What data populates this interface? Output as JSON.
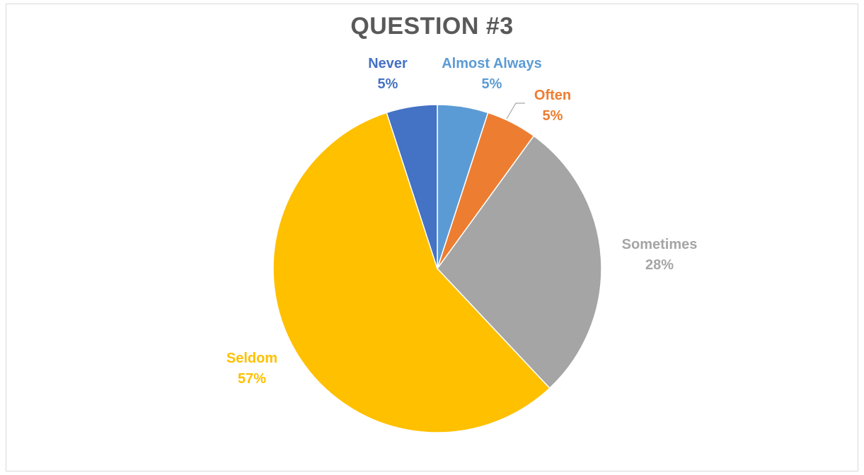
{
  "chart_data": {
    "type": "pie",
    "title": "QUESTION #3",
    "slices": [
      {
        "name": "Almost Always",
        "value": 5,
        "label": "5%",
        "color": "#5b9bd5"
      },
      {
        "name": "Often",
        "value": 5,
        "label": "5%",
        "color": "#ed7d31"
      },
      {
        "name": "Sometimes",
        "value": 28,
        "label": "28%",
        "color": "#a5a5a5"
      },
      {
        "name": "Seldom",
        "value": 57,
        "label": "57%",
        "color": "#ffc000"
      },
      {
        "name": "Never",
        "value": 5,
        "label": "5%",
        "color": "#4472c4"
      }
    ],
    "start": "12 o'clock",
    "direction": "clockwise",
    "legend": "none"
  }
}
